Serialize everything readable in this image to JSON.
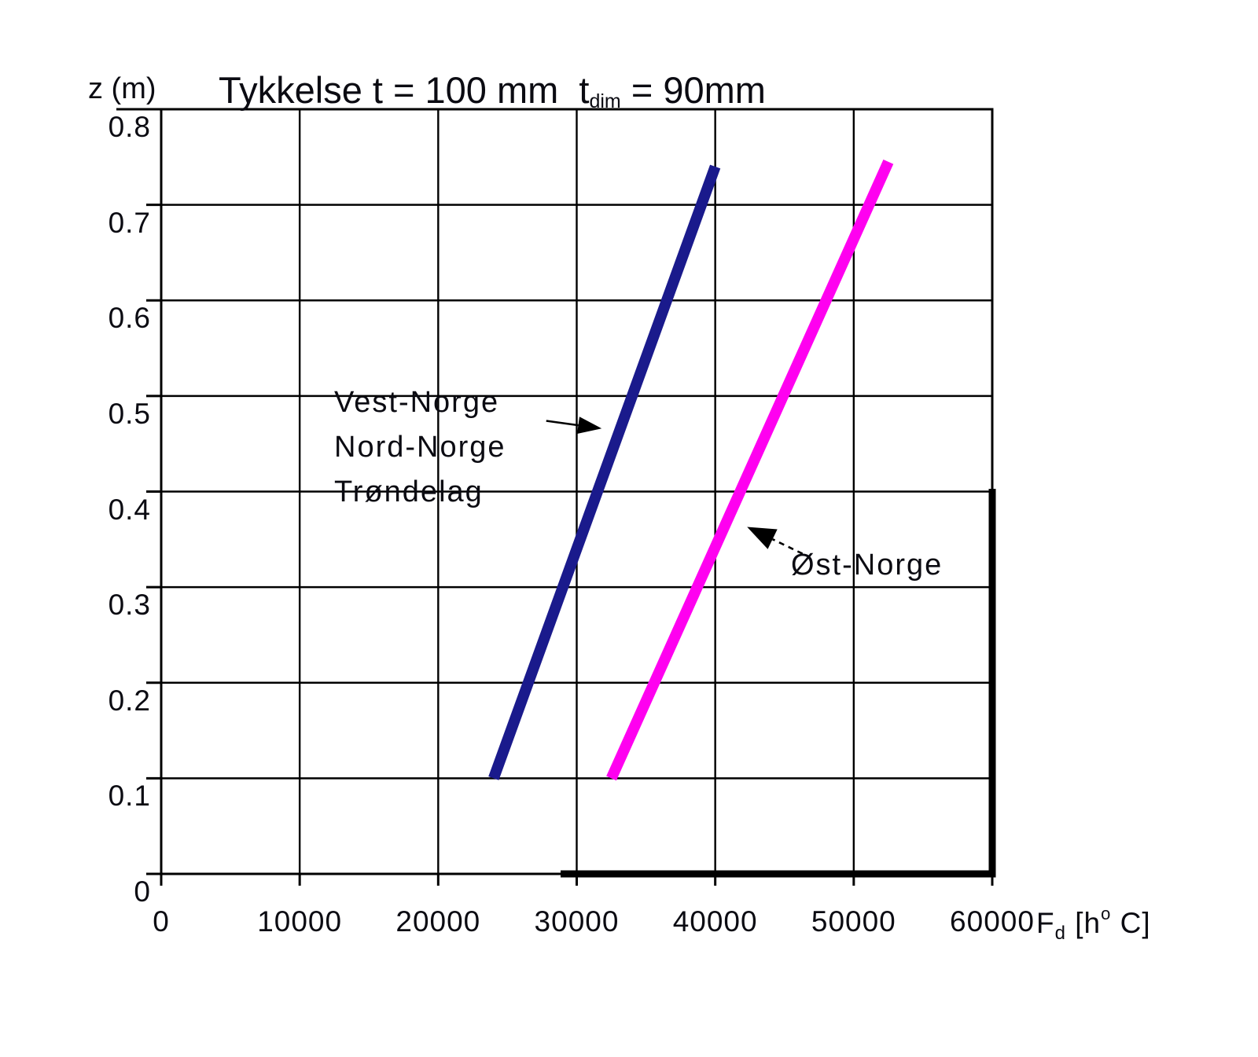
{
  "chart_data": {
    "type": "line",
    "title": "Tykkelse t = 100 mm  tdim = 90mm",
    "title_parts": {
      "prefix": "Tykkelse t = 100 mm  t",
      "sub": "dim",
      "suffix": " = 90mm"
    },
    "ylabel": "z (m)",
    "xlabel": "Fd [h° C]",
    "xlabel_parts": {
      "base": "F",
      "sub": "d",
      "mid": " [h",
      "sup": "o",
      "end": " C]"
    },
    "xlim": [
      0,
      60000
    ],
    "ylim": [
      0,
      0.8
    ],
    "xticks": [
      0,
      10000,
      20000,
      30000,
      40000,
      50000,
      60000
    ],
    "xtick_labels": [
      "0",
      "10000",
      "20000",
      "30000",
      "40000",
      "50000",
      "60000"
    ],
    "yticks": [
      0,
      0.1,
      0.2,
      0.3,
      0.4,
      0.5,
      0.6,
      0.7,
      0.8
    ],
    "ytick_labels": [
      "0",
      "0.1",
      "0.2",
      "0.3",
      "0.4",
      "0.5",
      "0.6",
      "0.7",
      "0.8"
    ],
    "grid": true,
    "grid_color": "#000000",
    "background": "#ffffff",
    "series": [
      {
        "name": "Vest-Norge / Nord-Norge / Trøndelag",
        "color": "#1a1a8c",
        "points": [
          [
            24000,
            0.1
          ],
          [
            40000,
            0.74
          ]
        ]
      },
      {
        "name": "Øst-Norge",
        "color": "#ff00f0",
        "points": [
          [
            32500,
            0.1
          ],
          [
            52500,
            0.745
          ]
        ]
      }
    ],
    "annotations": [
      {
        "id": "vest-norge-group",
        "lines": [
          "Vest-Norge",
          "Nord-Norge",
          "Trøndelag"
        ],
        "arrow": {
          "from": [
            27800,
            0.474
          ],
          "to": [
            31800,
            0.466
          ],
          "style": "solid"
        }
      },
      {
        "id": "ost-norge",
        "lines": [
          "Øst-Norge"
        ],
        "arrow": {
          "from": [
            46300,
            0.335
          ],
          "to": [
            42300,
            0.363
          ],
          "style": "dashed"
        }
      }
    ]
  }
}
